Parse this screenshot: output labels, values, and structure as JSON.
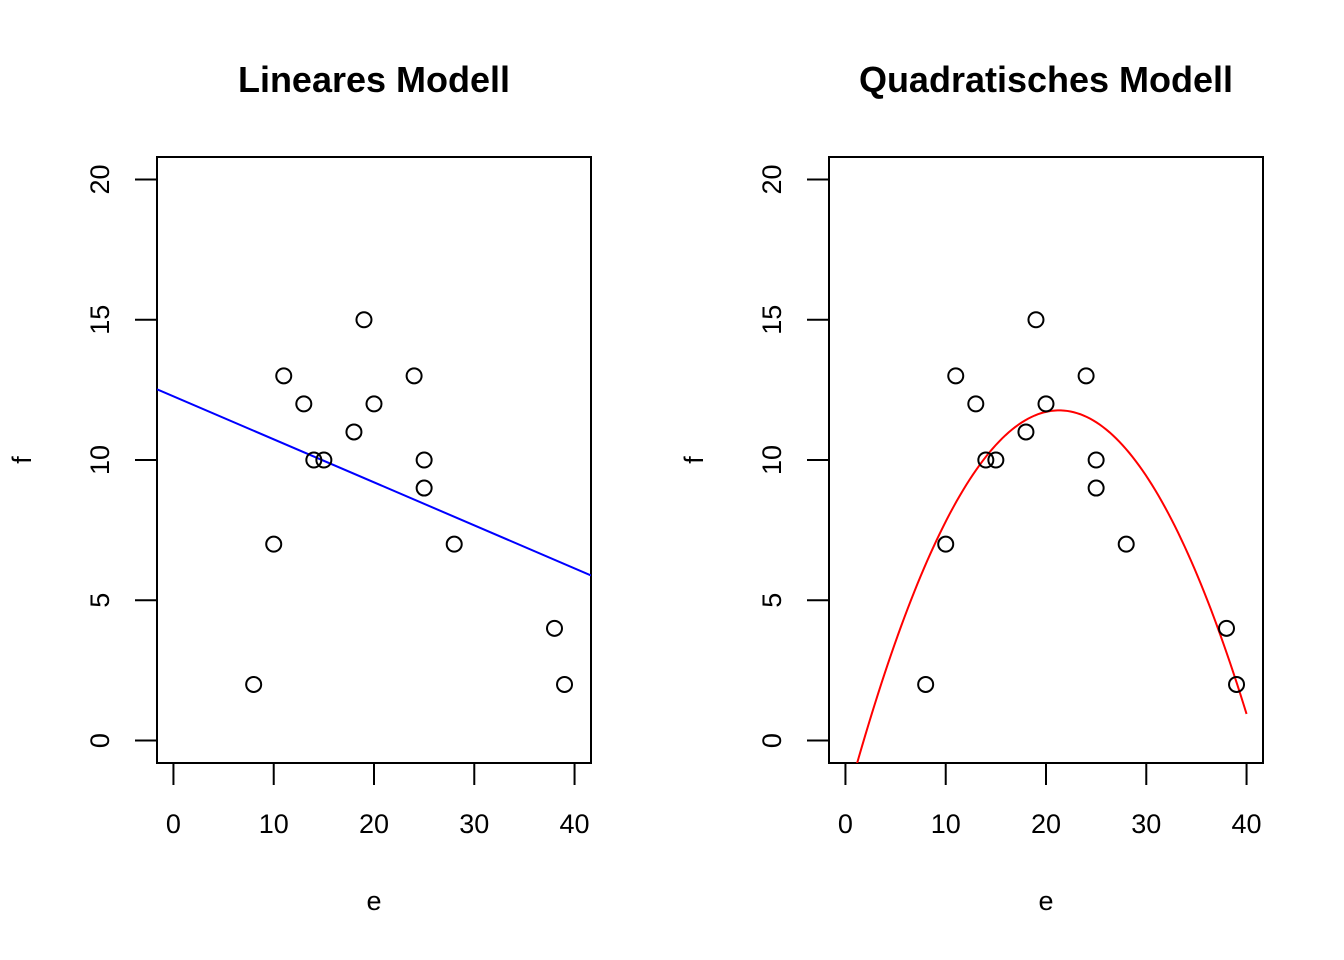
{
  "chart_data": [
    {
      "type": "scatter",
      "title": "Lineares Modell",
      "xlabel": "e",
      "ylabel": "f",
      "xlim": [
        -1.64,
        41.64
      ],
      "ylim": [
        -0.8,
        20.8
      ],
      "xticks": [
        "0",
        "10",
        "20",
        "30",
        "40"
      ],
      "yticks": [
        "0",
        "5",
        "10",
        "15",
        "20"
      ],
      "grid": false,
      "points": {
        "x": [
          8,
          10,
          11,
          13,
          14,
          15,
          18,
          19,
          20,
          24,
          25,
          25,
          28,
          38,
          39
        ],
        "y": [
          2,
          7,
          13,
          12,
          10,
          10,
          11,
          15,
          12,
          13,
          10,
          9,
          7,
          4,
          2
        ]
      },
      "fit": {
        "kind": "linear",
        "color": "#0000FF",
        "coef": [
          12.27,
          -0.1533
        ]
      }
    },
    {
      "type": "scatter",
      "title": "Quadratisches  Modell",
      "xlabel": "e",
      "ylabel": "f",
      "xlim": [
        -1.64,
        41.64
      ],
      "ylim": [
        -0.8,
        20.8
      ],
      "xticks": [
        "0",
        "10",
        "20",
        "30",
        "40"
      ],
      "yticks": [
        "0",
        "5",
        "10",
        "15",
        "20"
      ],
      "grid": false,
      "points": {
        "x": [
          8,
          10,
          11,
          13,
          14,
          15,
          18,
          19,
          20,
          24,
          25,
          25,
          28,
          38,
          39
        ],
        "y": [
          2,
          7,
          13,
          12,
          10,
          10,
          11,
          15,
          12,
          13,
          10,
          9,
          7,
          4,
          2
        ]
      },
      "fit": {
        "kind": "quadratic",
        "color": "#FF0000",
        "coef": [
          -2.3,
          1.3204,
          -0.03098
        ],
        "xrange": [
          1.0,
          40.0
        ]
      }
    }
  ]
}
